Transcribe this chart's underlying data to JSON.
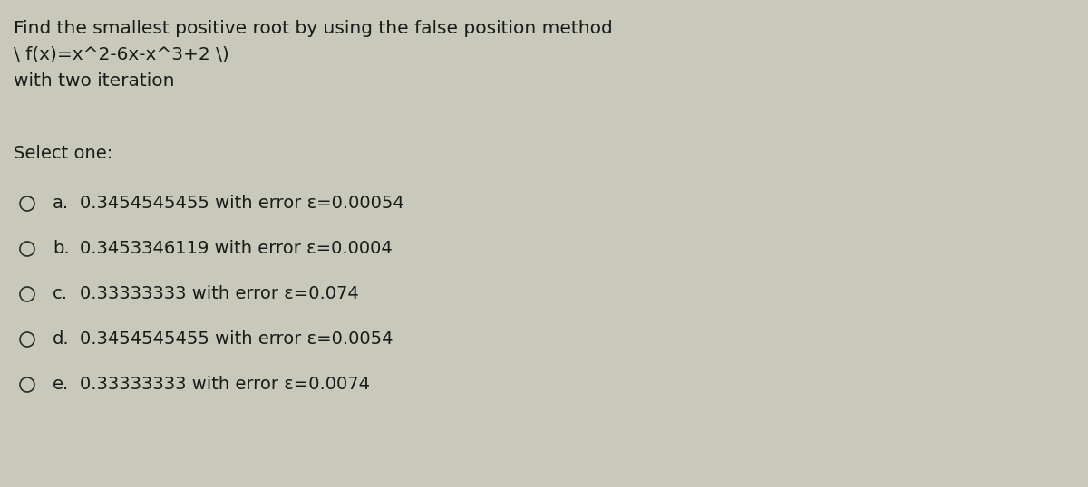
{
  "background_color": "#c9c9bb",
  "title_line1": "Find the smallest positive root by using the false position method",
  "title_line2": "\\ f(x)=x^2-6x-x^3+2 \\)",
  "title_line3": "with two iteration",
  "select_label": "Select one:",
  "options": [
    {
      "letter": "a.",
      "text": "0.3454545455 with error ε=0.00054"
    },
    {
      "letter": "b.",
      "text": "0.3453346119 with error ε=0.0004"
    },
    {
      "letter": "c.",
      "text": "0.33333333 with error ε=0.074"
    },
    {
      "letter": "d.",
      "text": "0.3454545455 with error ε=0.0054"
    },
    {
      "letter": "e.",
      "text": "0.33333333 with error ε=0.0074"
    }
  ],
  "text_color": "#1a1a1a",
  "circle_color": "#2a2a2a",
  "font_size_title": 14.5,
  "font_size_options": 14.0,
  "font_size_select": 14.0,
  "fig_width": 12.0,
  "fig_height": 5.38,
  "dpi": 100
}
